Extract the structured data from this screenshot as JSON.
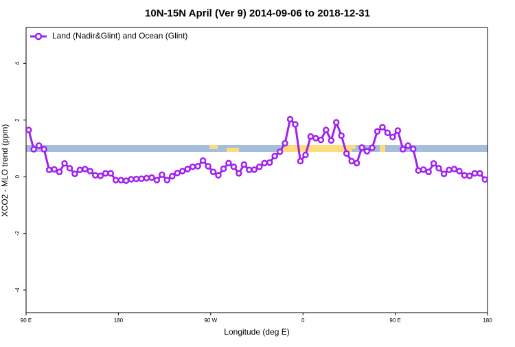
{
  "chart_data": {
    "type": "line",
    "title": "10N-15N April (Ver 9)   2014-09-06 to 2018-12-31",
    "x_label": "Longitude (deg E)",
    "y_label": "XCO2 - MLO trend (ppm)",
    "xlim": [
      90,
      540
    ],
    "ylim": [
      -4.8,
      5.27
    ],
    "xticks": [
      {
        "value": 90,
        "label": "90 E"
      },
      {
        "value": 180,
        "label": "180"
      },
      {
        "value": 270,
        "label": "90 W"
      },
      {
        "value": 360,
        "label": "0"
      },
      {
        "value": 450,
        "label": "90 E"
      },
      {
        "value": 540,
        "label": "180"
      }
    ],
    "yticks": [
      -4,
      -2,
      0,
      2,
      4
    ],
    "legend": "top-left",
    "x": [
      92.5,
      97.5,
      102.5,
      107.5,
      112.5,
      117.5,
      122.5,
      127.5,
      132.5,
      137.5,
      142.5,
      147.5,
      152.5,
      157.5,
      162.5,
      167.5,
      172.5,
      177.5,
      182.5,
      187.5,
      192.5,
      197.5,
      202.5,
      207.5,
      212.5,
      217.5,
      222.5,
      227.5,
      232.5,
      237.5,
      242.5,
      247.5,
      252.5,
      257.5,
      262.5,
      267.5,
      272.5,
      277.5,
      282.5,
      287.5,
      292.5,
      297.5,
      302.5,
      307.5,
      312.5,
      317.5,
      322.5,
      327.5,
      332.5,
      337.5,
      342.5,
      347.5,
      352.5,
      357.5,
      362.5,
      367.5,
      372.5,
      377.5,
      382.5,
      387.5,
      392.5,
      397.5,
      402.5,
      407.5,
      412.5,
      417.5,
      422.5,
      427.5,
      432.5,
      437.5,
      442.5,
      447.5,
      452.5,
      457.5,
      462.5,
      467.5,
      472.5,
      477.5,
      482.5,
      487.5,
      492.5,
      497.5,
      502.5,
      507.5,
      512.5,
      517.5,
      522.5,
      527.5,
      532.5,
      537.5
    ],
    "series": [
      {
        "name": "Land (Nadir&Glint) and Ocean (Glint)",
        "color": "#a020f0",
        "values": [
          1.65,
          0.97,
          1.1,
          0.97,
          0.24,
          0.26,
          0.17,
          0.47,
          0.3,
          0.1,
          0.24,
          0.27,
          0.2,
          0.05,
          0.03,
          0.12,
          0.12,
          -0.12,
          -0.12,
          -0.14,
          -0.09,
          -0.08,
          -0.07,
          -0.05,
          -0.03,
          -0.12,
          0.07,
          -0.12,
          0.02,
          0.13,
          0.2,
          0.27,
          0.35,
          0.37,
          0.57,
          0.37,
          0.17,
          0.05,
          0.28,
          0.48,
          0.35,
          0.12,
          0.43,
          0.24,
          0.25,
          0.35,
          0.48,
          0.5,
          0.73,
          0.88,
          1.18,
          2.03,
          1.85,
          0.55,
          0.77,
          1.42,
          1.36,
          1.3,
          1.65,
          1.28,
          1.92,
          1.45,
          0.82,
          0.55,
          0.48,
          1.03,
          0.9,
          1.02,
          1.6,
          1.75,
          1.55,
          1.4,
          1.63,
          0.97,
          1.1,
          0.98,
          0.22,
          0.25,
          0.17,
          0.47,
          0.3,
          0.1,
          0.24,
          0.27,
          0.2,
          0.05,
          0.03,
          0.12,
          0.12,
          -0.1
        ]
      }
    ]
  }
}
